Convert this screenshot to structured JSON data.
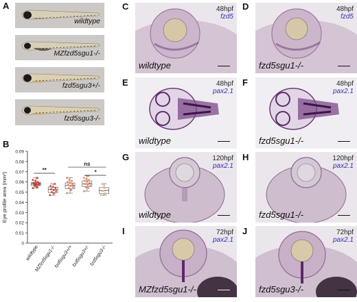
{
  "panel_labels": {
    "A": "A",
    "B": "B",
    "C": "C",
    "D": "D",
    "E": "E",
    "F": "F",
    "G": "G",
    "H": "H",
    "I": "I",
    "J": "J"
  },
  "panelA": {
    "genotypes": [
      "wildtype",
      "MZfzd5sgu1-/-",
      "fzd5sgu3+/-",
      "fzd5sgu3-/-"
    ]
  },
  "images": {
    "C": {
      "stage": "48hpf",
      "probe": "fzd5",
      "genotype": "wildtype"
    },
    "D": {
      "stage": "48hpf",
      "probe": "fzd5",
      "genotype": "fzd5sgu1-/-"
    },
    "E": {
      "stage": "48hpf",
      "probe": "pax2.1",
      "genotype": "wildtype"
    },
    "F": {
      "stage": "48hpf",
      "probe": "pax2.1",
      "genotype": "fzd5sgu1-/-"
    },
    "G": {
      "stage": "120hpf",
      "probe": "pax2.1",
      "genotype": "wildtype"
    },
    "H": {
      "stage": "120hpf",
      "probe": "pax2.1",
      "genotype": "fzd5sgu1-/-"
    },
    "I": {
      "stage": "72hpf",
      "probe": "pax2.1",
      "genotype": "MZfzd5sgu1-/-"
    },
    "J": {
      "stage": "72hpf",
      "probe": "pax2.1",
      "genotype": "fzd5sgu3-/-"
    }
  },
  "chart_data": {
    "type": "box",
    "ylabel": "Eye profile area (mm²)",
    "ylim": [
      0,
      0.09
    ],
    "yticks": [
      "0",
      "0.01",
      "0.02",
      "0.03",
      "0.04",
      "0.05",
      "0.06",
      "0.07",
      "0.08",
      "0.09"
    ],
    "categories": [
      "wildtype",
      "MZfzd5sgu1-/-",
      "fzd5sgu3+/+",
      "fzd5sgu3+/-",
      "fzd5sgu3-/-"
    ],
    "boxes": [
      {
        "min": 0.054,
        "q1": 0.0565,
        "median": 0.058,
        "q3": 0.0595,
        "max": 0.064
      },
      {
        "min": 0.047,
        "q1": 0.0495,
        "median": 0.0525,
        "q3": 0.055,
        "max": 0.058
      },
      {
        "min": 0.049,
        "q1": 0.0535,
        "median": 0.0565,
        "q3": 0.059,
        "max": 0.064
      },
      {
        "min": 0.051,
        "q1": 0.0555,
        "median": 0.058,
        "q3": 0.061,
        "max": 0.066
      },
      {
        "min": 0.047,
        "q1": 0.0485,
        "median": 0.0515,
        "q3": 0.0545,
        "max": 0.058
      }
    ],
    "point_colors": [
      "#c0392b",
      "#c8463a",
      "#e0805a",
      "#e48a60",
      "#f0b48c"
    ],
    "points": [
      [
        0.054,
        0.055,
        0.056,
        0.057,
        0.057,
        0.058,
        0.058,
        0.059,
        0.059,
        0.06,
        0.061,
        0.062,
        0.064,
        0.0575,
        0.0585
      ],
      [
        0.047,
        0.049,
        0.05,
        0.051,
        0.052,
        0.053,
        0.054,
        0.055,
        0.056,
        0.058
      ],
      [
        0.049,
        0.052,
        0.054,
        0.055,
        0.056,
        0.057,
        0.058,
        0.059,
        0.06,
        0.061,
        0.062,
        0.064
      ],
      [
        0.051,
        0.054,
        0.055,
        0.056,
        0.057,
        0.058,
        0.059,
        0.06,
        0.061,
        0.062,
        0.063,
        0.064,
        0.066
      ],
      [
        0.047,
        0.049,
        0.051,
        0.052,
        0.054,
        0.058
      ]
    ],
    "comparisons": [
      {
        "from": 0,
        "to": 1,
        "label": "**",
        "y": 0.0685
      },
      {
        "from": 2,
        "to": 4,
        "label": "ns",
        "y": 0.0745
      },
      {
        "from": 3,
        "to": 4,
        "label": "*",
        "y": 0.0665
      }
    ]
  }
}
